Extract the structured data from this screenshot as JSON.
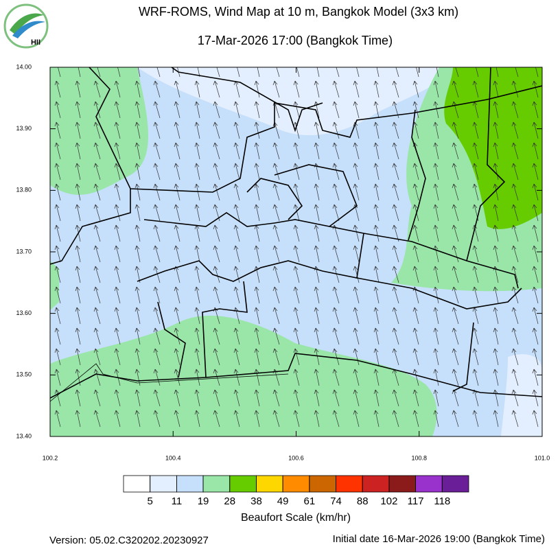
{
  "header": {
    "title": "WRF-ROMS, Wind Map at 10 m, Bangkok Model (3x3 km)",
    "subtitle": "17-Mar-2026 17:00 (Bangkok Time)"
  },
  "logo": {
    "text": "HII"
  },
  "map": {
    "xlim": [
      100.2,
      101.0
    ],
    "ylim": [
      13.4,
      14.0
    ],
    "xticks": [
      100.2,
      100.4,
      100.6,
      100.8,
      {
        "value": 101,
        "label": "101.0"
      }
    ],
    "yticks": [
      {
        "value": 13.4,
        "label": "13.40"
      },
      {
        "value": 13.5,
        "label": "13.50"
      },
      {
        "value": 13.6,
        "label": "13.60"
      },
      {
        "value": 13.7,
        "label": "13.70"
      },
      {
        "value": 13.8,
        "label": "13.80"
      },
      {
        "value": 13.9,
        "label": "13.90"
      },
      {
        "value": 14,
        "label": "14.00"
      }
    ]
  },
  "colorbar": {
    "title": "Beaufort Scale (km/hr)",
    "colors": [
      "#ffffff",
      "#e3effe",
      "#c6dffa",
      "#99e6a8",
      "#66cc00",
      "#ffd700",
      "#ff8c00",
      "#cc6600",
      "#ff3300",
      "#cc2222",
      "#8b1a1a",
      "#9932cc",
      "#6a1f99"
    ],
    "ticks": [
      5,
      11,
      19,
      28,
      38,
      49,
      61,
      74,
      88,
      102,
      117,
      118
    ]
  },
  "footer": {
    "version": "Version: 05.02.C320202.20230927",
    "initial": "Initial date 16-Mar-2026 19:00 (Bangkok Time)"
  }
}
